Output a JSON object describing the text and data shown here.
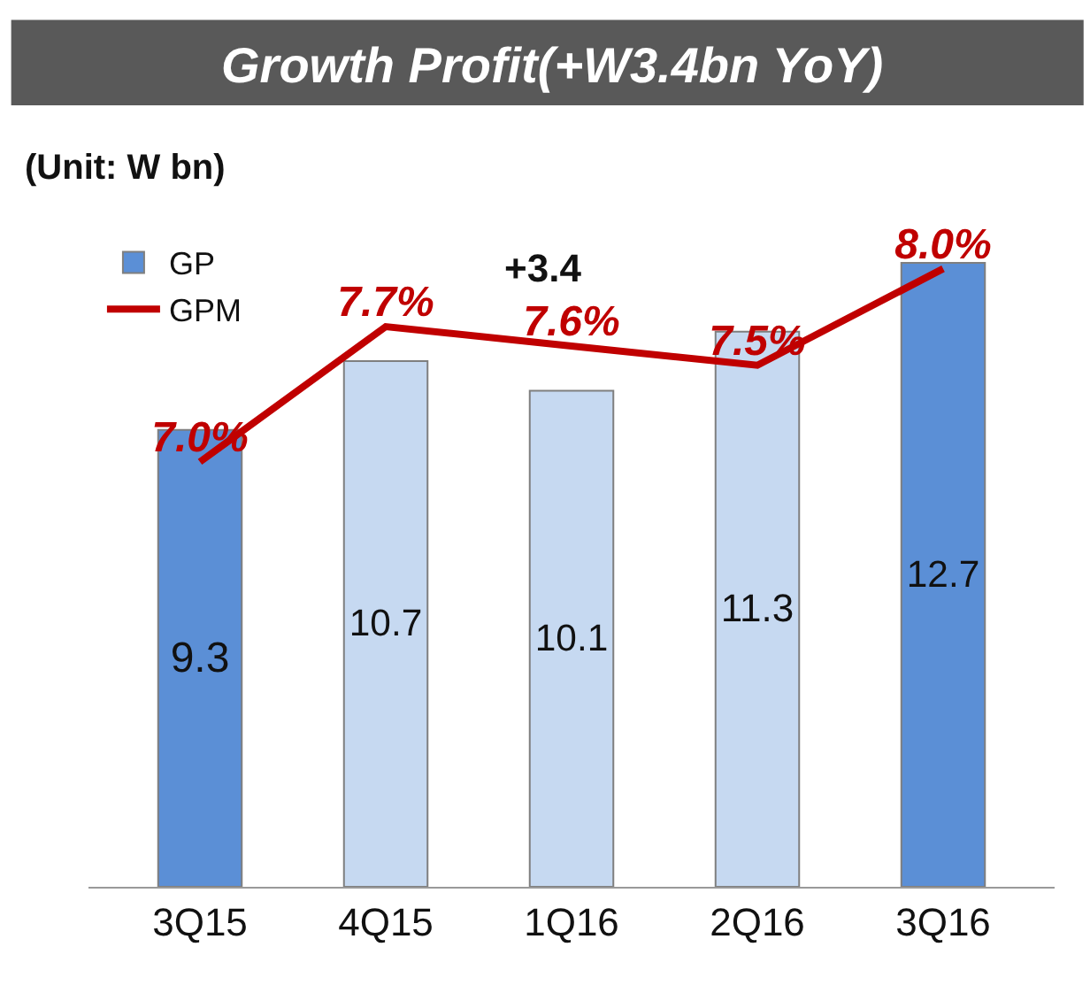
{
  "chart_data": {
    "type": "bar",
    "title": "Growth Profit(+W3.4bn YoY)",
    "subtitle": "(Unit: W bn)",
    "categories": [
      "3Q15",
      "4Q15",
      "1Q16",
      "2Q16",
      "3Q16"
    ],
    "series": [
      {
        "name": "GP",
        "colors": [
          "#5b8fd6",
          "#c6d9f1",
          "#c6d9f1",
          "#c6d9f1",
          "#5b8fd6"
        ],
        "values": [
          9.3,
          10.7,
          10.1,
          11.3,
          12.7
        ],
        "value_labels": [
          "9.3",
          "10.7",
          "10.1",
          "11.3",
          "12.7"
        ]
      },
      {
        "name": "GPM",
        "type": "line",
        "axis": "y2",
        "color": "#c00000",
        "values": [
          7.0,
          7.7,
          7.6,
          7.5,
          8.0
        ],
        "value_labels": [
          "7.0%",
          "7.7%",
          "7.6%",
          "7.5%",
          "8.0%"
        ]
      }
    ],
    "annotations": [
      "+3.4"
    ],
    "legend": "top left",
    "marker": "none"
  }
}
